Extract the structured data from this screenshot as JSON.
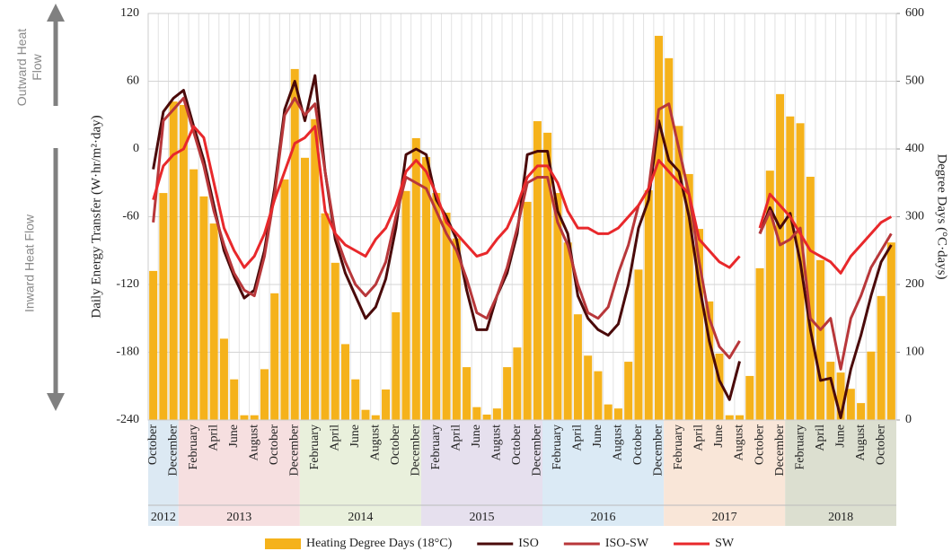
{
  "chart_data": {
    "type": "combo",
    "y_label": "Daily  Energy Transfer (W·hr/m²·day)",
    "y2_label": "Degree Days (°C·days)",
    "annotations": [
      "Outward Heat Flow",
      "Inward Heat Flow"
    ],
    "categories": [
      "October",
      null,
      "December",
      null,
      "February",
      null,
      "April",
      null,
      "June",
      null,
      "August",
      null,
      "October",
      null,
      "December",
      null,
      "February",
      null,
      "April",
      null,
      "June",
      null,
      "August",
      null,
      "October",
      null,
      "December",
      null,
      "February",
      null,
      "April",
      null,
      "June",
      null,
      "August",
      null,
      "October",
      null,
      "December",
      null,
      "February",
      null,
      "April",
      null,
      "June",
      null,
      "August",
      null,
      "October",
      null,
      "December",
      null,
      "February",
      null,
      "April",
      null,
      "June",
      null,
      "August",
      null,
      "October",
      null,
      "December",
      null,
      "February",
      null,
      "April",
      null,
      "June",
      null,
      "August",
      null,
      "October",
      null
    ],
    "year_groups": [
      {
        "label": "2012",
        "count": 3,
        "color": "#dce9f3"
      },
      {
        "label": "2013",
        "count": 12,
        "color": "#f6dfe0"
      },
      {
        "label": "2014",
        "count": 12,
        "color": "#e9f0dc"
      },
      {
        "label": "2015",
        "count": 12,
        "color": "#e6e0ee"
      },
      {
        "label": "2016",
        "count": 12,
        "color": "#dbeaf5"
      },
      {
        "label": "2017",
        "count": 12,
        "color": "#f9e6d8"
      },
      {
        "label": "2018",
        "count": 11,
        "color": "#dcdfd0"
      }
    ],
    "ylim": [
      -240,
      120
    ],
    "yticks": [
      -240,
      -180,
      -120,
      -60,
      0,
      60,
      120
    ],
    "y2lim": [
      0,
      600
    ],
    "y2ticks": [
      0,
      100,
      200,
      300,
      400,
      500,
      600
    ],
    "grid": true,
    "legend": "bottom",
    "series": [
      {
        "name": "Heating Degree Days (18°C)",
        "type": "bar",
        "axis": "y2",
        "color": "#f5b21b",
        "values": [
          220,
          335,
          470,
          465,
          370,
          330,
          290,
          120,
          60,
          7,
          7,
          75,
          187,
          355,
          518,
          387,
          444,
          305,
          232,
          112,
          60,
          15,
          7,
          45,
          159,
          338,
          416,
          388,
          335,
          306,
          268,
          78,
          19,
          8,
          17,
          78,
          107,
          322,
          441,
          424,
          335,
          262,
          156,
          95,
          72,
          23,
          17,
          86,
          222,
          339,
          567,
          534,
          434,
          363,
          282,
          175,
          98,
          7,
          7,
          65,
          224,
          368,
          481,
          448,
          438,
          359,
          236,
          86,
          70,
          46,
          25,
          101,
          183,
          262
        ]
      },
      {
        "name": "ISO",
        "type": "line",
        "color": "#4a0a0a",
        "values": [
          -18,
          33,
          45,
          52,
          20,
          -10,
          -50,
          -90,
          -113,
          -132,
          -125,
          -90,
          -35,
          35,
          60,
          25,
          65,
          -20,
          -80,
          -110,
          -130,
          -150,
          -140,
          -115,
          -70,
          -5,
          0,
          -5,
          -45,
          -60,
          -80,
          -125,
          -160,
          -160,
          -130,
          -110,
          -75,
          -5,
          -2,
          -2,
          -55,
          -75,
          -130,
          -150,
          -160,
          -165,
          -155,
          -120,
          -70,
          -45,
          25,
          -10,
          -20,
          -60,
          -120,
          -170,
          -205,
          -222,
          -188,
          null,
          -75,
          -52,
          -70,
          -57,
          -100,
          -160,
          -205,
          -203,
          -238,
          -195,
          -165,
          -130,
          -100,
          -85
        ]
      },
      {
        "name": "ISO-SW",
        "type": "line",
        "color": "#b8373a",
        "values": [
          -65,
          25,
          35,
          45,
          15,
          -15,
          -55,
          -85,
          -110,
          -125,
          -130,
          -95,
          -40,
          30,
          45,
          30,
          40,
          -20,
          -75,
          -100,
          -120,
          -130,
          -120,
          -100,
          -60,
          -25,
          -30,
          -35,
          -55,
          -75,
          -90,
          -115,
          -145,
          -150,
          -130,
          -105,
          -70,
          -30,
          -25,
          -25,
          -65,
          -85,
          -120,
          -145,
          -150,
          -140,
          -110,
          -85,
          -50,
          -35,
          35,
          40,
          0,
          -40,
          -100,
          -150,
          -175,
          -185,
          -170,
          null,
          -75,
          -55,
          -85,
          -80,
          -70,
          -150,
          -160,
          -150,
          -195,
          -150,
          -130,
          -105,
          -90,
          -75
        ]
      },
      {
        "name": "SW",
        "type": "line",
        "color": "#e8282b",
        "values": [
          -45,
          -15,
          -5,
          0,
          20,
          10,
          -30,
          -70,
          -90,
          -105,
          -95,
          -75,
          -45,
          -20,
          5,
          10,
          20,
          -55,
          -75,
          -85,
          -90,
          -95,
          -80,
          -70,
          -50,
          -20,
          -10,
          -20,
          -40,
          -65,
          -75,
          -85,
          -95,
          -92,
          -80,
          -70,
          -50,
          -25,
          -15,
          -15,
          -30,
          -55,
          -70,
          -70,
          -75,
          -75,
          -70,
          -60,
          -50,
          -35,
          -10,
          -20,
          -30,
          -40,
          -80,
          -90,
          -100,
          -105,
          -95,
          null,
          -70,
          -40,
          -50,
          -60,
          -75,
          -90,
          -95,
          -100,
          -110,
          -95,
          -85,
          -75,
          -65,
          -60
        ]
      }
    ]
  }
}
